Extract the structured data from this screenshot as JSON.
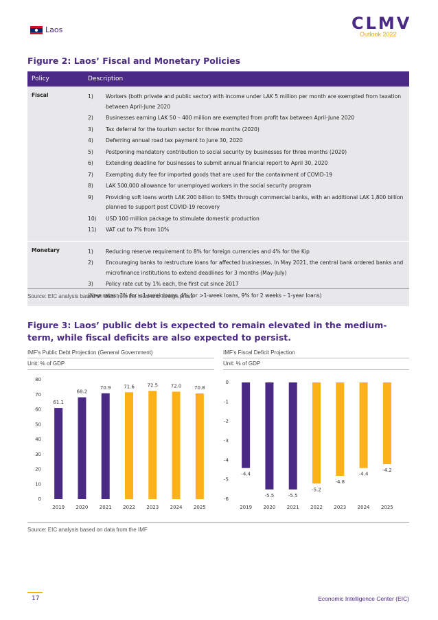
{
  "header": {
    "country": "Laos",
    "logo": "CLMV",
    "edition": "Outlook 2022"
  },
  "figure2": {
    "title": "Figure 2: Laos’ Fiscal and Monetary Policies",
    "columns": [
      "Policy",
      "Description"
    ],
    "rows": [
      {
        "policy": "Fiscal",
        "items": [
          {
            "number": "1)",
            "text": "Workers (both private and public sector) with income under LAK 5 million per month are exempted from taxation between April-June 2020"
          },
          {
            "number": "2)",
            "text": "Businesses earning LAK 50 – 400 million are exempted from profit tax between April-June 2020"
          },
          {
            "number": "3)",
            "text": "Tax deferral for the tourism sector for three months (2020)"
          },
          {
            "number": "4)",
            "text": "Deferring annual road tax payment to June 30, 2020"
          },
          {
            "number": "5)",
            "text": "Postponing mandatory contribution to social security by businesses for three months (2020)"
          },
          {
            "number": "6)",
            "text": "Extending deadline for businesses to submit annual financial report to April 30, 2020"
          },
          {
            "number": "7)",
            "text": "Exempting duty fee for imported goods that are used for the containment of COVID-19"
          },
          {
            "number": "8)",
            "text": "LAK 500,000 allowance for unemployed workers in the social security program"
          },
          {
            "number": "9)",
            "text": "Providing soft loans worth LAK 200 billion to SMEs through commercial banks, with an additional LAK 1,800 billion planned to support post COVID-19 recovery"
          },
          {
            "number": "10)",
            "text": "USD 100 million package to stimulate domestic production"
          },
          {
            "number": "11)",
            "text": "VAT cut to 7% from 10%"
          }
        ]
      },
      {
        "policy": "Monetary",
        "items": [
          {
            "number": "1)",
            "text": "Reducing reserve requirement to 8% for foreign currencies and 4% for the Kip"
          },
          {
            "number": "2)",
            "text": "Encouraging banks to restructure loans for affected businesses. In May 2021, the central bank ordered banks and microfinance institutions to extend deadlines for 3 months (May-July)"
          },
          {
            "number": "3)",
            "text": "Policy rate cut by 1% each, the first cut since 2017"
          }
        ],
        "note": "(New rates: 3% for <1-week loans, 4% for >1-week loans, 9% for 2 weeks – 1-year loans)"
      }
    ],
    "source": "Source: EIC analysis based on data from the local and foreign press"
  },
  "figure3": {
    "title": "Figure 3: Laos’ public debt is expected to remain elevated in the medium-term, while fiscal deficits are also expected to persist.",
    "source": "Source: EIC analysis based on data from the IMF"
  },
  "chart_data": [
    {
      "type": "bar",
      "title": "IMF’s Public Debt Projection (General Government)",
      "subtitle": "Unit: % of GDP",
      "categories": [
        "2019",
        "2020",
        "2021",
        "2022",
        "2023",
        "2024",
        "2025"
      ],
      "values": [
        61.1,
        68.2,
        70.9,
        71.6,
        72.5,
        72.0,
        70.8
      ],
      "value_labels": [
        "61.1",
        "68.2",
        "70.9",
        "71.6",
        "72.5",
        "72.0",
        "70.8"
      ],
      "colors": [
        "#4b2a85",
        "#4b2a85",
        "#4b2a85",
        "#fbb117",
        "#fbb117",
        "#fbb117",
        "#fbb117"
      ],
      "ylim": [
        0,
        80
      ],
      "yticks": [
        0,
        10,
        20,
        30,
        40,
        50,
        60,
        70,
        80
      ]
    },
    {
      "type": "bar",
      "title": "IMF’s Fiscal Deficit Projection",
      "subtitle": "Unit: % of GDP",
      "categories": [
        "2019",
        "2020",
        "2021",
        "2022",
        "2023",
        "2024",
        "2025"
      ],
      "values": [
        -4.4,
        -5.5,
        -5.5,
        -5.2,
        -4.8,
        -4.4,
        -4.2
      ],
      "colors": [
        "#4b2a85",
        "#4b2a85",
        "#4b2a85",
        "#fbb117",
        "#fbb117",
        "#fbb117",
        "#fbb117"
      ],
      "ylim": [
        -6,
        0
      ],
      "yticks": [
        0,
        -1,
        -2,
        -3,
        -4,
        -5,
        -6
      ]
    }
  ],
  "footer": {
    "page": "17",
    "organization": "Economic Intelligence Center (EIC)"
  }
}
